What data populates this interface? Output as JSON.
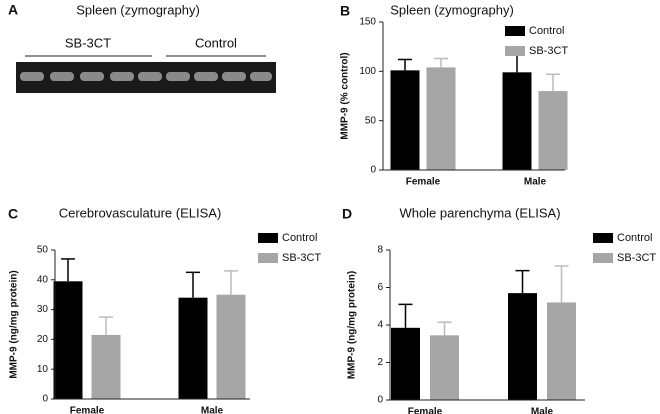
{
  "gel": {
    "label": "A",
    "title": "Spleen (zymography)",
    "groups": [
      "SB-3CT",
      "Control"
    ]
  },
  "chart_data": [
    {
      "type": "bar",
      "panel": "B",
      "title": "Spleen (zymography)",
      "ylabel": "MMP-9 (% control)",
      "categories": [
        "Female",
        "Male"
      ],
      "series": [
        {
          "name": "Control",
          "color": "#000000",
          "values": [
            101,
            99
          ],
          "errors": [
            11,
            22
          ]
        },
        {
          "name": "SB-3CT",
          "color": "#a6a6a6",
          "values": [
            104,
            80
          ],
          "errors": [
            9,
            17
          ]
        }
      ],
      "ylim": [
        0,
        150
      ],
      "yticks": [
        0,
        50,
        100,
        150
      ]
    },
    {
      "type": "bar",
      "panel": "C",
      "title": "Cerebrovasculature  (ELISA)",
      "ylabel": "MMP-9 (ng/mg protein)",
      "categories": [
        "Female",
        "Male"
      ],
      "series": [
        {
          "name": "Control",
          "color": "#000000",
          "values": [
            39.5,
            34
          ],
          "errors": [
            7.5,
            8.5
          ]
        },
        {
          "name": "SB-3CT",
          "color": "#a6a6a6",
          "values": [
            21.5,
            35
          ],
          "errors": [
            6,
            8
          ]
        }
      ],
      "ylim": [
        0,
        50
      ],
      "yticks": [
        0,
        10,
        20,
        30,
        40,
        50
      ]
    },
    {
      "type": "bar",
      "panel": "D",
      "title": "Whole parenchyma (ELISA)",
      "ylabel": "MMP-9 (ng/mg protein)",
      "categories": [
        "Female",
        "Male"
      ],
      "series": [
        {
          "name": "Control",
          "color": "#000000",
          "values": [
            3.85,
            5.7
          ],
          "errors": [
            1.25,
            1.2
          ]
        },
        {
          "name": "SB-3CT",
          "color": "#a6a6a6",
          "values": [
            3.45,
            5.2
          ],
          "errors": [
            0.7,
            1.95
          ]
        }
      ],
      "ylim": [
        0,
        8
      ],
      "yticks": [
        0,
        2,
        4,
        6,
        8
      ]
    }
  ]
}
